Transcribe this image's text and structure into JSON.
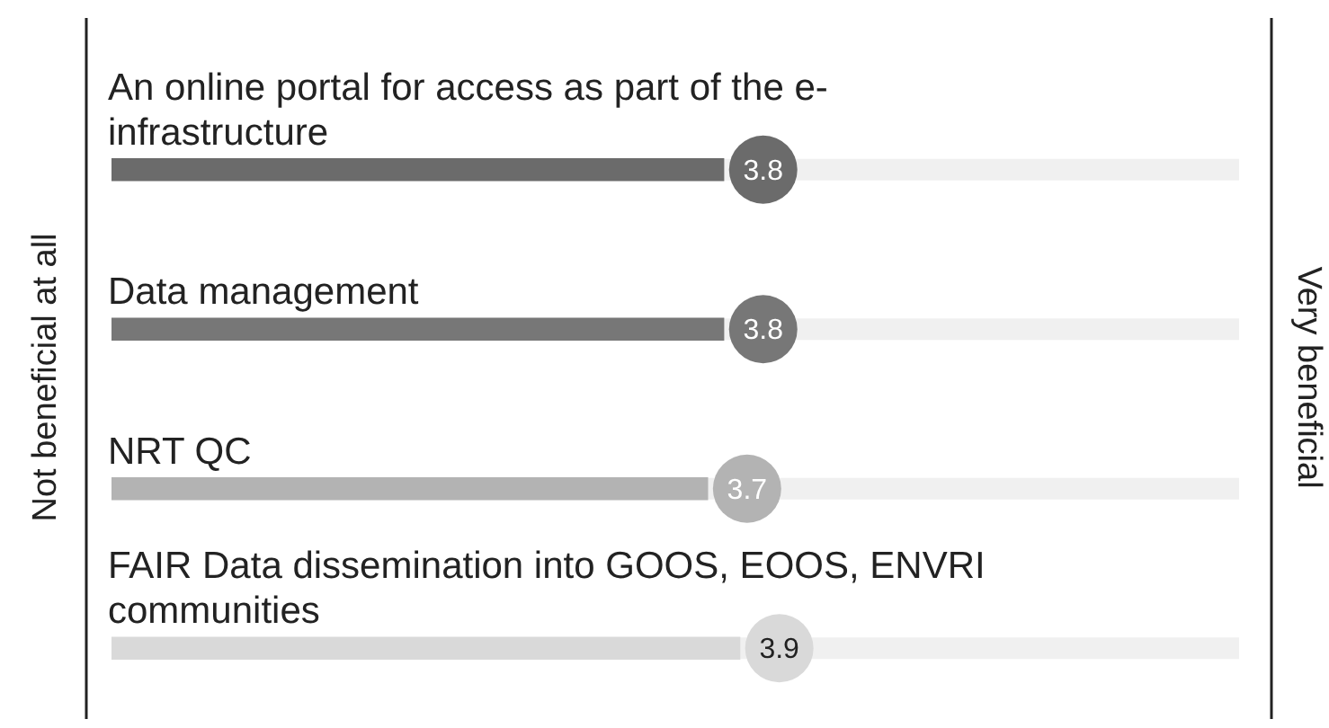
{
  "chart_data": {
    "type": "bar",
    "orientation": "horizontal",
    "categories": [
      "An online portal for access as part of the e-infrastructure",
      "Data management",
      "NRT QC",
      "FAIR Data dissemination into GOOS, EOOS, ENVRI communities"
    ],
    "values": [
      3.8,
      3.8,
      3.7,
      3.9
    ],
    "colors": [
      "#6b6b6b",
      "#777777",
      "#b3b3b3",
      "#d9d9d9"
    ],
    "data_labels": true,
    "ylabel": "Not beneficial at all",
    "annotations": [
      "Very beneficial"
    ]
  }
}
